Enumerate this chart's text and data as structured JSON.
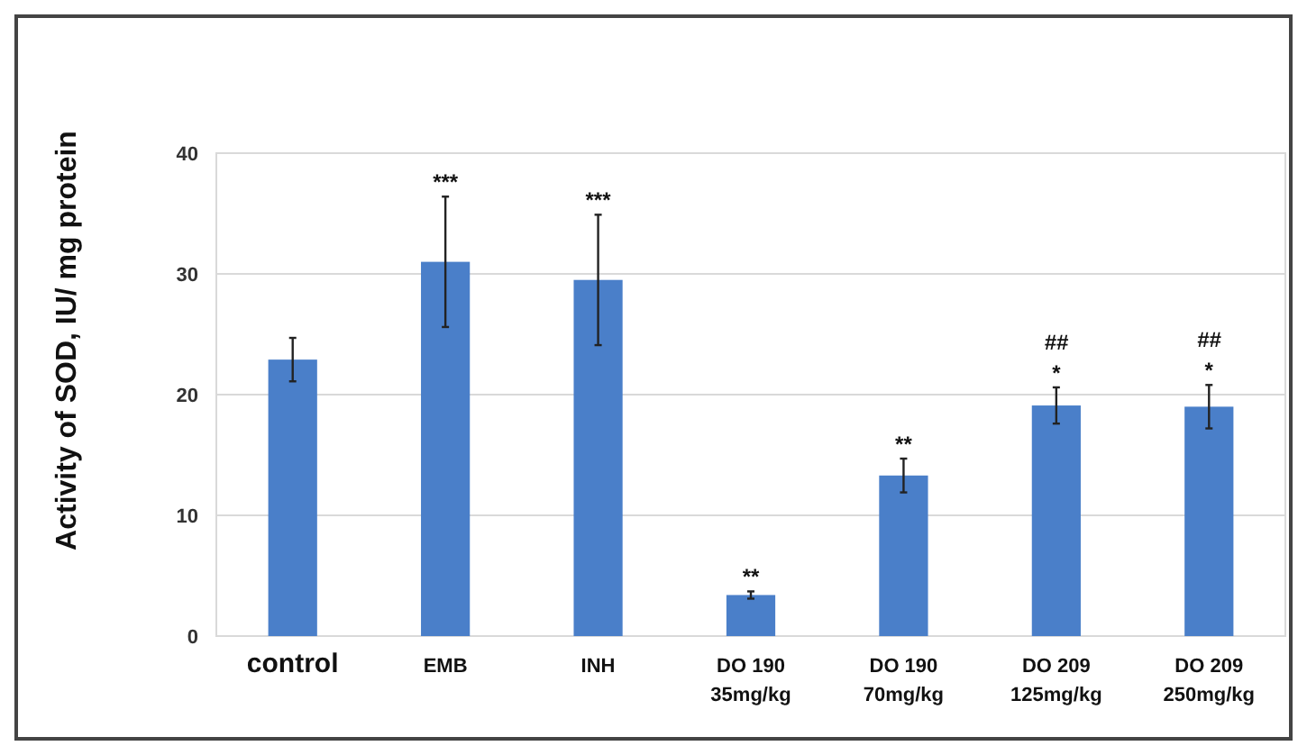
{
  "chart_data": {
    "type": "bar",
    "ylabel": "Activity of SOD, IU/ mg protein",
    "categories": [
      "control",
      "EMB",
      "INH",
      "DO 190\n35mg/kg",
      "DO 190\n70mg/kg",
      "DO 209\n125mg/kg",
      "DO 209\n250mg/kg"
    ],
    "values": [
      22.9,
      31.0,
      29.5,
      3.4,
      13.3,
      19.1,
      19.0
    ],
    "errors": [
      1.8,
      5.4,
      5.4,
      0.3,
      1.4,
      1.5,
      1.8
    ],
    "color": "#4a7fc9",
    "ylim": [
      0,
      40
    ],
    "yticks": [
      0,
      10,
      20,
      30,
      40
    ],
    "grid": "y",
    "value_labels": [
      null,
      "***",
      "***",
      "**",
      "**",
      "##\n*",
      "##\n*"
    ]
  }
}
